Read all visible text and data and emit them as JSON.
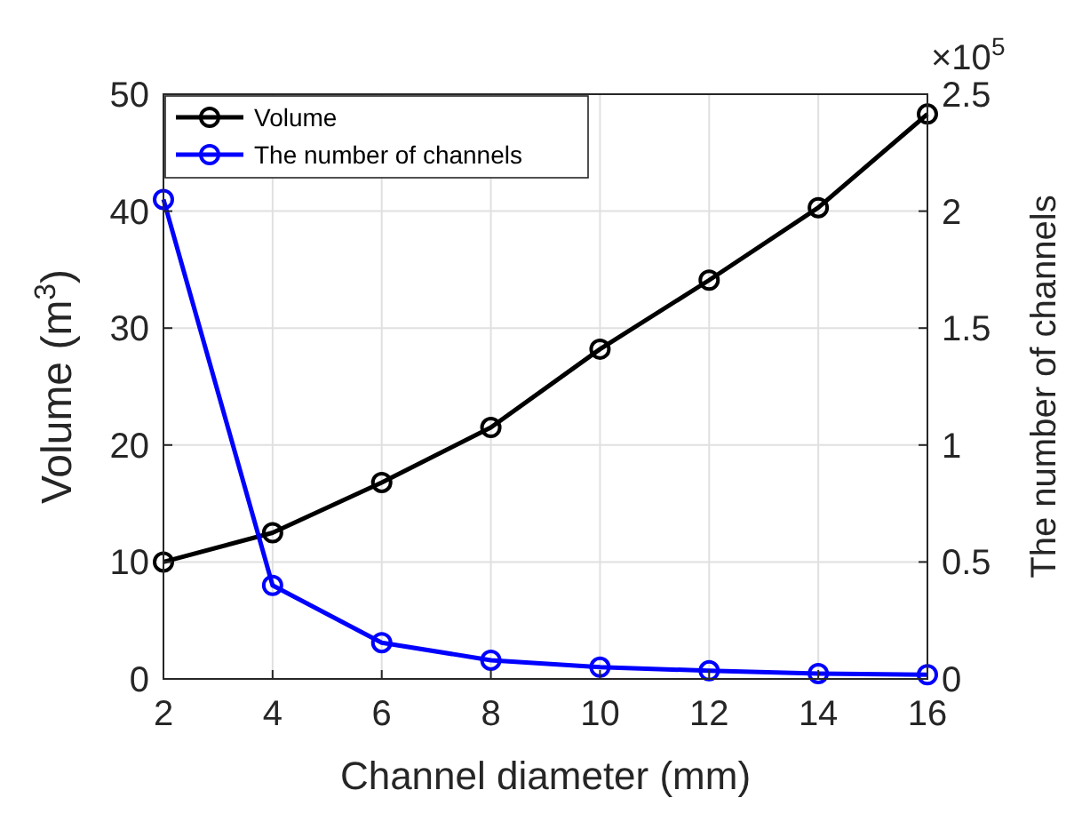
{
  "chart_data": {
    "type": "line",
    "xlabel": "Channel diameter (mm)",
    "ylabel": "Volume (m$^{3}$)",
    "y2label": "The number of channels",
    "x": [
      2,
      4,
      6,
      8,
      10,
      12,
      14,
      16
    ],
    "series": [
      {
        "name": "Volume",
        "color": "#000000",
        "values": [
          10,
          12.5,
          16.8,
          21.5,
          28.2,
          34.1,
          40.3,
          48.3
        ]
      },
      {
        "name": "The number of channels",
        "color": "#0000ff",
        "axis": "y2",
        "values": [
          2.05,
          0.4,
          0.155,
          0.08,
          0.05,
          0.035,
          0.023,
          0.018
        ]
      }
    ],
    "xlim": [
      2,
      16
    ],
    "xticks": [
      2,
      4,
      6,
      8,
      10,
      12,
      14,
      16
    ],
    "ylim": [
      0,
      50
    ],
    "yticks": [
      0,
      10,
      20,
      30,
      40,
      50
    ],
    "y2lim": [
      0,
      2.5
    ],
    "y2ticks": [
      0,
      0.5,
      1,
      1.5,
      2,
      2.5
    ],
    "annotations": [
      "×10$^{5}$"
    ],
    "grid": true,
    "legend": "top left",
    "marker": "circle",
    "line_style": "solid"
  }
}
